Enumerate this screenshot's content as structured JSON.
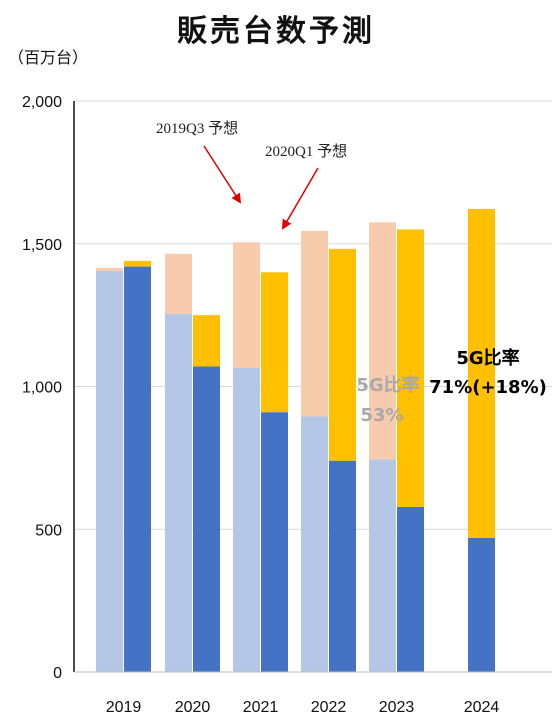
{
  "title": "販売台数予測",
  "unit_label": "（百万台）",
  "chart_data": {
    "type": "bar",
    "title": "販売台数予測",
    "ylabel": "（百万台）",
    "ylim": [
      0,
      2000
    ],
    "yticks": [
      0,
      500,
      1000,
      1500,
      2000
    ],
    "ytick_labels": [
      "0",
      "500",
      "1,000",
      "1,500",
      "2,000"
    ],
    "grid": true,
    "categories": [
      "2019",
      "2020",
      "2021",
      "2022",
      "2023",
      "2024"
    ],
    "series": [
      {
        "forecast": "2019Q3",
        "segment": "bottom",
        "color": "#b4c7e7",
        "values": [
          1405,
          1255,
          1065,
          895,
          745,
          null
        ]
      },
      {
        "forecast": "2019Q3",
        "segment": "top",
        "color": "#f8cbad",
        "values": [
          10,
          210,
          440,
          650,
          830,
          null
        ]
      },
      {
        "forecast": "2020Q1",
        "segment": "bottom",
        "color": "#4472c4",
        "values": [
          1420,
          1070,
          910,
          740,
          578,
          470
        ]
      },
      {
        "forecast": "2020Q1",
        "segment": "top",
        "color": "#ffc000",
        "values": [
          20,
          180,
          490,
          742,
          972,
          1152
        ]
      }
    ],
    "annotations": [
      {
        "id": "forecast-2019q3",
        "text": "2019Q3 予想"
      },
      {
        "id": "forecast-2020q1",
        "text": "2020Q1 予想"
      }
    ],
    "labels": {
      "ratio_2019q3": {
        "line1": "5G比率",
        "line2": "53%"
      },
      "ratio_2020q1": {
        "line1": "5G比率",
        "line2": "71%(+18%)"
      }
    },
    "arrow_color": "#e00000"
  }
}
